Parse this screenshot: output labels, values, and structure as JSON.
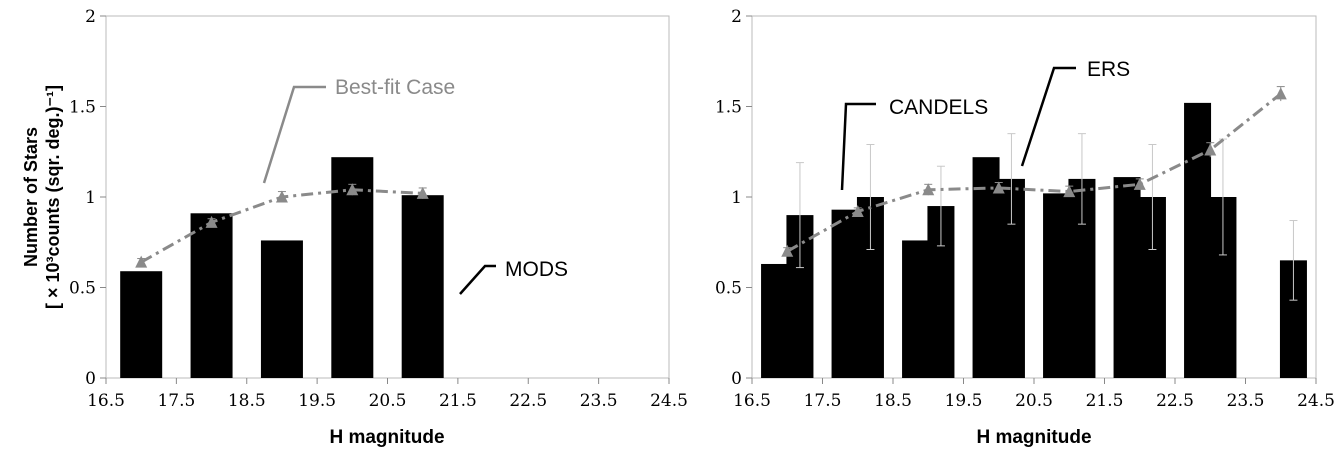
{
  "chart_data": [
    {
      "type": "bar",
      "xlabel": "H magnitude",
      "ylabel": "Number of Stars",
      "ylabel_line2": "[ × 10³counts  (sqr. deg.)⁻¹]",
      "xlim": [
        16.5,
        24.5
      ],
      "ylim": [
        0,
        2
      ],
      "xticks": [
        "16.5",
        "17.5",
        "18.5",
        "19.5",
        "20.5",
        "21.5",
        "22.5",
        "23.5",
        "24.5"
      ],
      "yticks": [
        "0",
        "0.5",
        "1",
        "1.5",
        "2"
      ],
      "series": [
        {
          "kind": "bar",
          "x": [
            17.0,
            18.0,
            19.0,
            20.0,
            21.0
          ],
          "values": [
            0.59,
            0.91,
            0.76,
            1.22,
            1.01
          ],
          "color": "#000000"
        },
        {
          "kind": "line-markers",
          "x": [
            17.0,
            18.0,
            19.0,
            20.0,
            21.0
          ],
          "values": [
            0.64,
            0.86,
            1.0,
            1.04,
            1.02
          ],
          "errors": [
            0.02,
            0.02,
            0.03,
            0.03,
            0.03
          ],
          "color": "#8a8a8a"
        }
      ],
      "annotations": [
        {
          "text": "Best-fit Case",
          "color": "#8a8a8a"
        },
        {
          "text": "MODS",
          "color": "#000000"
        }
      ]
    },
    {
      "type": "bar",
      "xlabel": "H magnitude",
      "ylabel": "",
      "xlim": [
        16.5,
        24.5
      ],
      "ylim": [
        0,
        2
      ],
      "xticks": [
        "16.5",
        "17.5",
        "18.5",
        "19.5",
        "20.5",
        "21.5",
        "22.5",
        "23.5",
        "24.5"
      ],
      "yticks": [
        "0",
        "0.5",
        "1",
        "1.5",
        "2"
      ],
      "series": [
        {
          "kind": "bar",
          "x": [
            16.82,
            17.82,
            18.82,
            19.82,
            20.82,
            21.82,
            22.82
          ],
          "values": [
            0.63,
            0.93,
            0.76,
            1.22,
            1.02,
            1.11,
            1.52
          ],
          "color": "#000000"
        },
        {
          "kind": "bar",
          "x": [
            17.18,
            18.18,
            19.18,
            20.18,
            21.18,
            22.18,
            23.18,
            24.18
          ],
          "values": [
            0.9,
            1.0,
            0.95,
            1.1,
            1.1,
            1.0,
            1.0,
            0.65
          ],
          "errors": [
            0.29,
            0.29,
            0.22,
            0.25,
            0.25,
            0.29,
            0.32,
            0.22
          ],
          "color": "#000000"
        },
        {
          "kind": "line-markers",
          "x": [
            17.0,
            18.0,
            19.0,
            20.0,
            21.0,
            22.0,
            23.0,
            24.0
          ],
          "values": [
            0.7,
            0.92,
            1.04,
            1.05,
            1.03,
            1.07,
            1.26,
            1.57
          ],
          "errors": [
            0.02,
            0.02,
            0.03,
            0.03,
            0.03,
            0.03,
            0.04,
            0.04
          ],
          "color": "#8a8a8a"
        }
      ],
      "annotations": [
        {
          "text": "CANDELS",
          "color": "#000000"
        },
        {
          "text": "ERS",
          "color": "#000000"
        }
      ]
    }
  ]
}
